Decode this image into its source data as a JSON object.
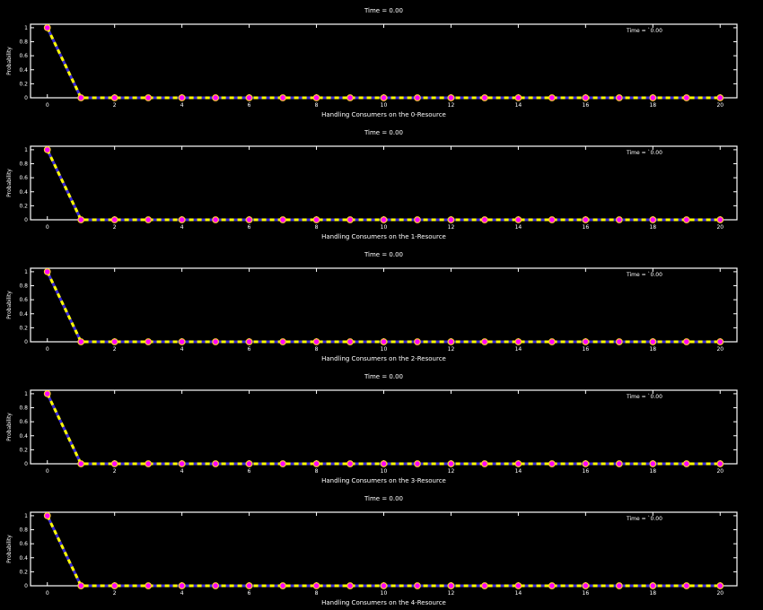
{
  "colors": {
    "background": "#000000",
    "axes": "#ffffff",
    "text": "#ffffff",
    "series_line_a": "#3a2bd6",
    "series_line_b": "#ffff00",
    "marker_fill": "#ff00ff",
    "marker_edge": "#ffcc33"
  },
  "chart_data": [
    {
      "type": "line",
      "title": "Time =  0.00",
      "xlabel": "Handling Consumers on the 0-Resource",
      "ylabel": "Probability",
      "annotation": "Time = `0.00",
      "xlim": [
        -0.5,
        20.5
      ],
      "ylim": [
        0,
        1.05
      ],
      "xticks": [
        "0",
        "2",
        "4",
        "6",
        "8",
        "10",
        "12",
        "14",
        "16",
        "18",
        "20"
      ],
      "yticks": [
        "0",
        "0.2",
        "0.4",
        "0.6",
        "0.8",
        "1"
      ],
      "grid": false,
      "x": [
        0,
        1,
        2,
        3,
        4,
        5,
        6,
        7,
        8,
        9,
        10,
        11,
        12,
        13,
        14,
        15,
        16,
        17,
        18,
        19,
        20
      ],
      "series": [
        {
          "values": [
            1,
            0,
            0,
            0,
            0,
            0,
            0,
            0,
            0,
            0,
            0,
            0,
            0,
            0,
            0,
            0,
            0,
            0,
            0,
            0,
            0
          ]
        }
      ]
    },
    {
      "type": "line",
      "title": "Time =  0.00",
      "xlabel": "Handling Consumers on the 1-Resource",
      "ylabel": "Probability",
      "annotation": "Time = `0.00",
      "xlim": [
        -0.5,
        20.5
      ],
      "ylim": [
        0,
        1.05
      ],
      "xticks": [
        "0",
        "2",
        "4",
        "6",
        "8",
        "10",
        "12",
        "14",
        "16",
        "18",
        "20"
      ],
      "yticks": [
        "0",
        "0.2",
        "0.4",
        "0.6",
        "0.8",
        "1"
      ],
      "grid": false,
      "x": [
        0,
        1,
        2,
        3,
        4,
        5,
        6,
        7,
        8,
        9,
        10,
        11,
        12,
        13,
        14,
        15,
        16,
        17,
        18,
        19,
        20
      ],
      "series": [
        {
          "values": [
            1,
            0,
            0,
            0,
            0,
            0,
            0,
            0,
            0,
            0,
            0,
            0,
            0,
            0,
            0,
            0,
            0,
            0,
            0,
            0,
            0
          ]
        }
      ]
    },
    {
      "type": "line",
      "title": "Time =  0.00",
      "xlabel": "Handling Consumers on the 2-Resource",
      "ylabel": "Probability",
      "annotation": "Time = `0.00",
      "xlim": [
        -0.5,
        20.5
      ],
      "ylim": [
        0,
        1.05
      ],
      "xticks": [
        "0",
        "2",
        "4",
        "6",
        "8",
        "10",
        "12",
        "14",
        "16",
        "18",
        "20"
      ],
      "yticks": [
        "0",
        "0.2",
        "0.4",
        "0.6",
        "0.8",
        "1"
      ],
      "grid": false,
      "x": [
        0,
        1,
        2,
        3,
        4,
        5,
        6,
        7,
        8,
        9,
        10,
        11,
        12,
        13,
        14,
        15,
        16,
        17,
        18,
        19,
        20
      ],
      "series": [
        {
          "values": [
            1,
            0,
            0,
            0,
            0,
            0,
            0,
            0,
            0,
            0,
            0,
            0,
            0,
            0,
            0,
            0,
            0,
            0,
            0,
            0,
            0
          ]
        }
      ]
    },
    {
      "type": "line",
      "title": "Time =  0.00",
      "xlabel": "Handling Consumers on the 3-Resource",
      "ylabel": "Probability",
      "annotation": "Time = `0.00",
      "xlim": [
        -0.5,
        20.5
      ],
      "ylim": [
        0,
        1.05
      ],
      "xticks": [
        "0",
        "2",
        "4",
        "6",
        "8",
        "10",
        "12",
        "14",
        "16",
        "18",
        "20"
      ],
      "yticks": [
        "0",
        "0.2",
        "0.4",
        "0.6",
        "0.8",
        "1"
      ],
      "grid": false,
      "x": [
        0,
        1,
        2,
        3,
        4,
        5,
        6,
        7,
        8,
        9,
        10,
        11,
        12,
        13,
        14,
        15,
        16,
        17,
        18,
        19,
        20
      ],
      "series": [
        {
          "values": [
            1,
            0,
            0,
            0,
            0,
            0,
            0,
            0,
            0,
            0,
            0,
            0,
            0,
            0,
            0,
            0,
            0,
            0,
            0,
            0,
            0
          ]
        }
      ]
    },
    {
      "type": "line",
      "title": "Time =  0.00",
      "xlabel": "Handling Consumers on the 4-Resource",
      "ylabel": "Probability",
      "annotation": "Time = `0.00",
      "xlim": [
        -0.5,
        20.5
      ],
      "ylim": [
        0,
        1.05
      ],
      "xticks": [
        "0",
        "2",
        "4",
        "6",
        "8",
        "10",
        "12",
        "14",
        "16",
        "18",
        "20"
      ],
      "yticks": [
        "0",
        "0.2",
        "0.4",
        "0.6",
        "0.8",
        "1"
      ],
      "grid": false,
      "x": [
        0,
        1,
        2,
        3,
        4,
        5,
        6,
        7,
        8,
        9,
        10,
        11,
        12,
        13,
        14,
        15,
        16,
        17,
        18,
        19,
        20
      ],
      "series": [
        {
          "values": [
            1,
            0,
            0,
            0,
            0,
            0,
            0,
            0,
            0,
            0,
            0,
            0,
            0,
            0,
            0,
            0,
            0,
            0,
            0,
            0,
            0
          ]
        }
      ]
    }
  ]
}
